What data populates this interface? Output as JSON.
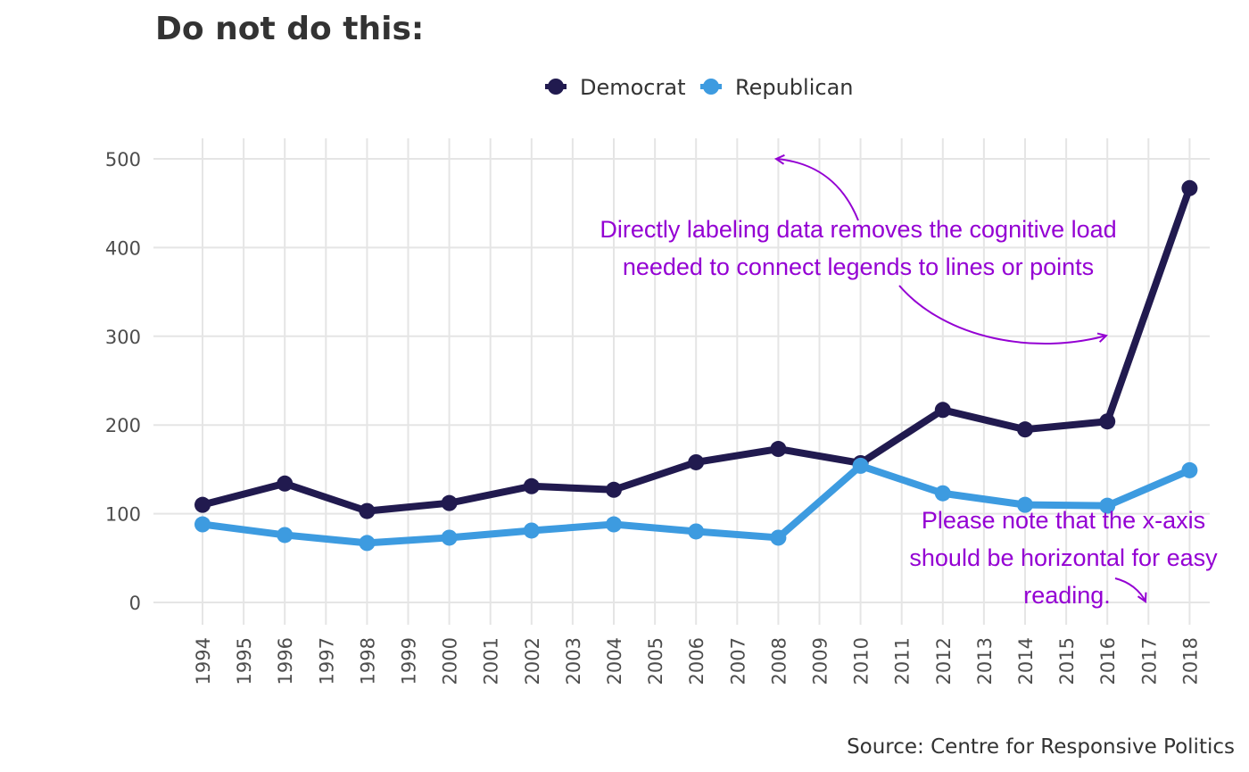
{
  "chart_data": {
    "type": "line",
    "title": "Do not do this:",
    "xlabel": "",
    "ylabel": "",
    "caption": "Source: Centre for Responsive Politics",
    "x": [
      "1994",
      "1995",
      "1996",
      "1997",
      "1998",
      "1999",
      "2000",
      "2001",
      "2002",
      "2003",
      "2004",
      "2005",
      "2006",
      "2007",
      "2008",
      "2009",
      "2010",
      "2011",
      "2012",
      "2013",
      "2014",
      "2015",
      "2016",
      "2017",
      "2018"
    ],
    "x_tick_rotation": "vertical",
    "ylim": [
      0,
      500
    ],
    "yticks": [
      "0",
      "100",
      "200",
      "300",
      "400",
      "500"
    ],
    "grid": "on",
    "legend": {
      "placement": "top",
      "entries": [
        "Democrat",
        "Republican"
      ]
    },
    "series": [
      {
        "name": "Democrat",
        "color": "#211a4f",
        "points": [
          {
            "x": "1994",
            "y": 110
          },
          {
            "x": "1996",
            "y": 134
          },
          {
            "x": "1998",
            "y": 103
          },
          {
            "x": "2000",
            "y": 112
          },
          {
            "x": "2002",
            "y": 131
          },
          {
            "x": "2004",
            "y": 127
          },
          {
            "x": "2006",
            "y": 158
          },
          {
            "x": "2008",
            "y": 173
          },
          {
            "x": "2010",
            "y": 157
          },
          {
            "x": "2012",
            "y": 217
          },
          {
            "x": "2014",
            "y": 195
          },
          {
            "x": "2016",
            "y": 204
          },
          {
            "x": "2018",
            "y": 467
          }
        ]
      },
      {
        "name": "Republican",
        "color": "#3d9be0",
        "points": [
          {
            "x": "1994",
            "y": 88
          },
          {
            "x": "1996",
            "y": 76
          },
          {
            "x": "1998",
            "y": 67
          },
          {
            "x": "2000",
            "y": 73
          },
          {
            "x": "2002",
            "y": 81
          },
          {
            "x": "2004",
            "y": 88
          },
          {
            "x": "2006",
            "y": 80
          },
          {
            "x": "2008",
            "y": 73
          },
          {
            "x": "2010",
            "y": 154
          },
          {
            "x": "2012",
            "y": 123
          },
          {
            "x": "2014",
            "y": 110
          },
          {
            "x": "2016",
            "y": 109
          },
          {
            "x": "2018",
            "y": 149
          }
        ]
      }
    ],
    "annotations": [
      {
        "id": "legend-note",
        "lines": [
          "Directly labeling data removes the cognitive load",
          "needed to connect legends to lines or points"
        ]
      },
      {
        "id": "axis-note",
        "lines": [
          "Please note that the x-axis",
          "should be horizontal for easy",
          "reading."
        ]
      }
    ],
    "annotation_color": "#9400d3"
  }
}
